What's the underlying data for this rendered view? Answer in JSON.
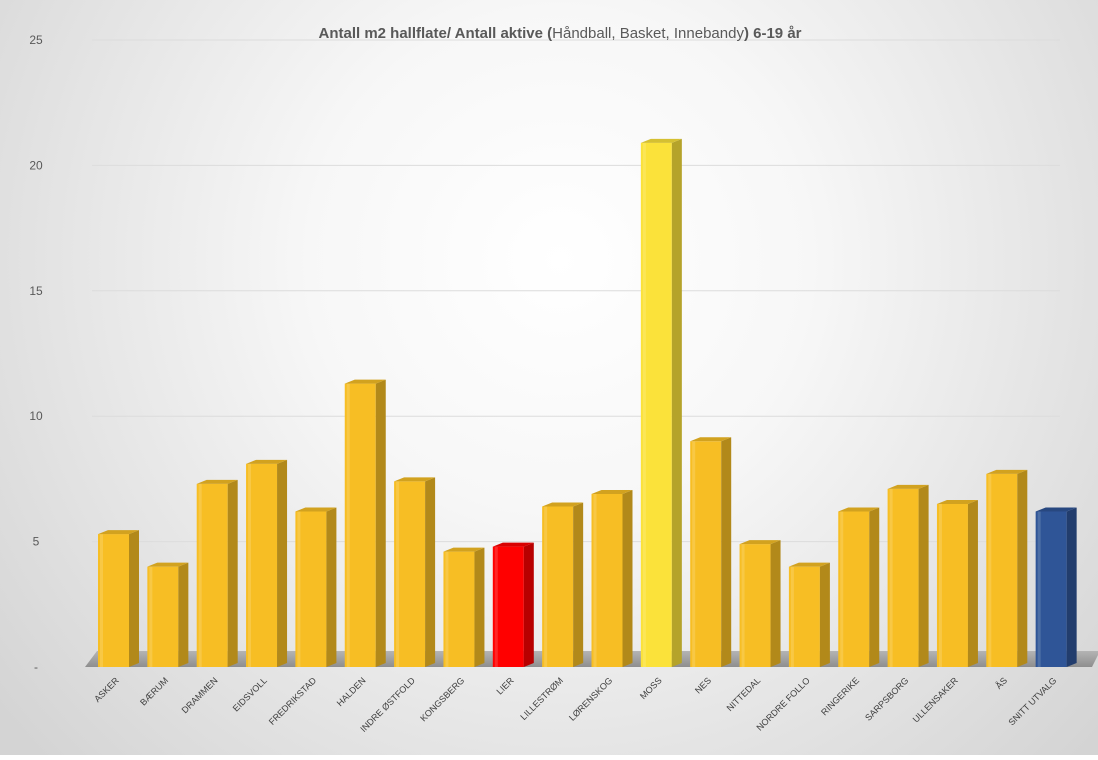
{
  "chart_data": {
    "type": "bar",
    "title_parts": [
      {
        "text": "Antall m2 hallflate/ Antall aktive (",
        "bold": true
      },
      {
        "text": "Håndball, Basket, Innebandy",
        "bold": false
      },
      {
        "text": ") 6-19 år",
        "bold": true
      }
    ],
    "categories": [
      "ASKER",
      "BÆRUM",
      "DRAMMEN",
      "EIDSVOLL",
      "FREDRIKSTAD",
      "HALDEN",
      "INDRE ØSTFOLD",
      "KONGSBERG",
      "LIER",
      "LILLESTRØM",
      "LØRENSKOG",
      "MOSS",
      "NES",
      "NITTEDAL",
      "NORDRE FOLLO",
      "RINGERIKE",
      "SARPSBORG",
      "ULLENSAKER",
      "ÅS",
      "SNITT UTVALG"
    ],
    "values": [
      5.3,
      4.0,
      7.3,
      8.1,
      6.2,
      11.3,
      7.4,
      4.6,
      4.8,
      6.4,
      6.9,
      20.9,
      9.0,
      4.9,
      4.0,
      6.2,
      7.1,
      6.5,
      7.7,
      6.2
    ],
    "colors": [
      "#F7BE24",
      "#F7BE24",
      "#F7BE24",
      "#F7BE24",
      "#F7BE24",
      "#F7BE24",
      "#F7BE24",
      "#F7BE24",
      "#FF0000",
      "#F7BE24",
      "#F7BE24",
      "#FBE23A",
      "#F7BE24",
      "#F7BE24",
      "#F7BE24",
      "#F7BE24",
      "#F7BE24",
      "#F7BE24",
      "#F7BE24",
      "#2F5597"
    ],
    "ylim": [
      0,
      25
    ],
    "yticks": [
      "-",
      "5",
      "10",
      "15",
      "20",
      "25"
    ],
    "grid": true,
    "xlabel": "",
    "ylabel": ""
  }
}
